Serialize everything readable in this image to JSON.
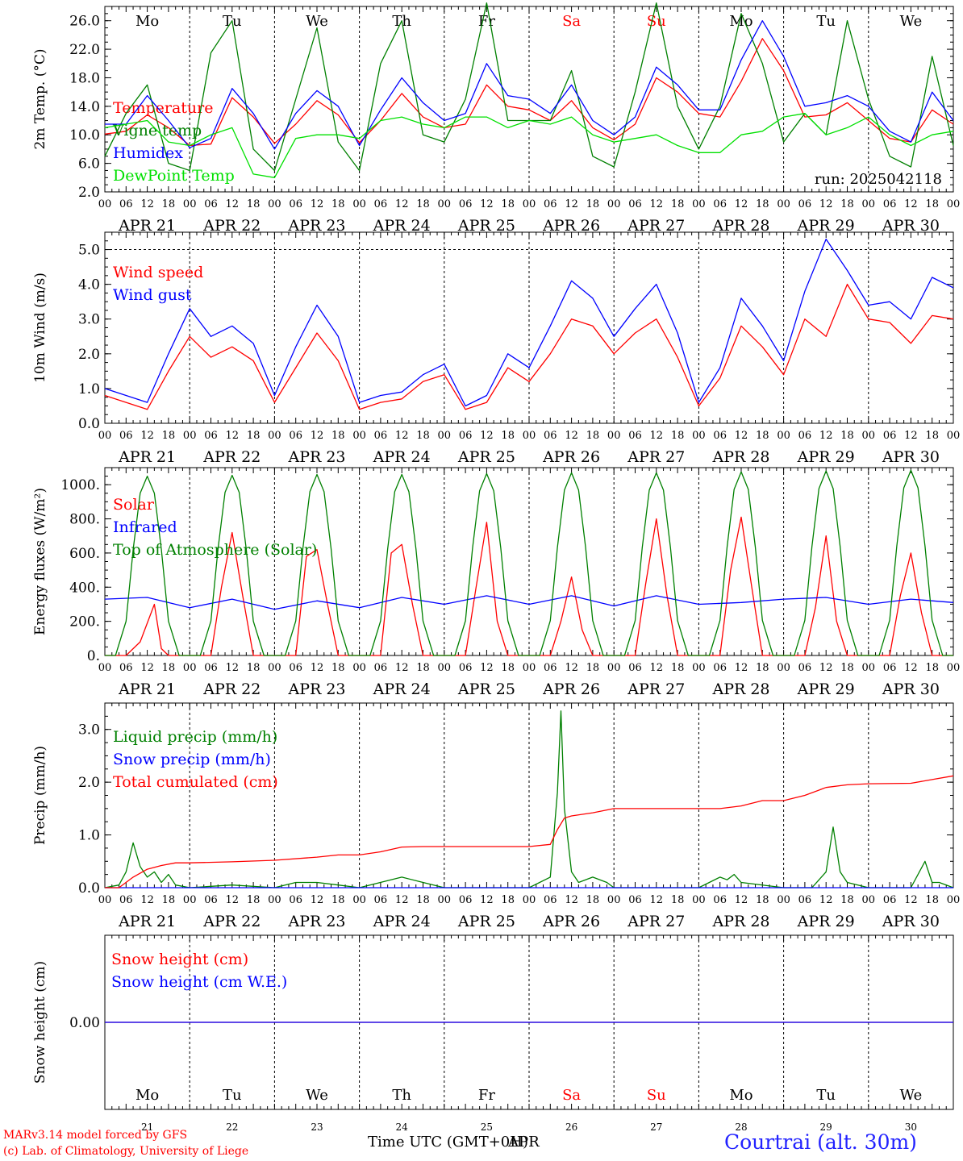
{
  "days": [
    "21",
    "22",
    "23",
    "24",
    "25",
    "26",
    "27",
    "28",
    "29",
    "30"
  ],
  "month": "APR",
  "weekdays": [
    "Mo",
    "Tu",
    "We",
    "Th",
    "Fr",
    "Sa",
    "Su",
    "Mo",
    "Tu",
    "We"
  ],
  "weekend_flags": [
    false,
    false,
    false,
    false,
    false,
    true,
    true,
    false,
    false,
    false
  ],
  "hour_ticks": [
    "00",
    "06",
    "12",
    "18"
  ],
  "colors": {
    "red": "#ff0000",
    "green": "#008000",
    "blue": "#0000ff",
    "lightgreen": "#00e000",
    "gray": "#888888",
    "axis": "#000000"
  },
  "footer": {
    "model": "MARv3.14 model forced by GFS",
    "credit": "(c) Lab. of Climatology, University of Liege",
    "time_label": "Time UTC (GMT+0H)",
    "time_label_overlay": "APR",
    "location": "Courtrai (alt. 30m)"
  },
  "chart_data": [
    {
      "type": "line",
      "ylabel": "2m Temp. (°C)",
      "ylim": [
        2,
        28
      ],
      "yticks": [
        "2.0",
        "6.0",
        "10.0",
        "14.0",
        "18.0",
        "22.0",
        "26.0"
      ],
      "annotation": "run: 2025042118",
      "x_unit": "hours since APR 21 00 UTC",
      "series": [
        {
          "name": "Temperature",
          "color": "red",
          "x": [
            0,
            6,
            12,
            18,
            24,
            30,
            36,
            42,
            48,
            54,
            60,
            66,
            72,
            78,
            84,
            90,
            96,
            102,
            108,
            114,
            120,
            126,
            132,
            138,
            144,
            150,
            156,
            162,
            168,
            174,
            180,
            186,
            192,
            198,
            204,
            210,
            216,
            222,
            228,
            234,
            240
          ],
          "values": [
            10.1,
            10.5,
            12.8,
            11.0,
            8.5,
            8.7,
            15.2,
            12.5,
            8.8,
            11.5,
            14.8,
            12.8,
            8.9,
            12.0,
            15.8,
            12.5,
            11.0,
            11.5,
            17.0,
            14.0,
            13.5,
            12.0,
            14.8,
            11.0,
            9.3,
            11.5,
            18.0,
            16.0,
            13.0,
            12.5,
            17.5,
            23.5,
            19.0,
            12.5,
            12.8,
            14.5,
            12.0,
            9.5,
            9.0,
            13.5,
            11.5
          ]
        },
        {
          "name": "Vigne temp",
          "color": "green",
          "x": [
            0,
            6,
            12,
            18,
            24,
            30,
            36,
            42,
            48,
            54,
            60,
            66,
            72,
            78,
            84,
            90,
            96,
            102,
            108,
            114,
            120,
            126,
            132,
            138,
            144,
            150,
            156,
            162,
            168,
            174,
            180,
            186,
            192,
            198,
            204,
            210,
            216,
            222,
            228,
            234,
            240
          ],
          "values": [
            7.0,
            13.0,
            17.0,
            6.0,
            5.0,
            21.5,
            26.0,
            8.0,
            5.0,
            15.0,
            25.0,
            9.0,
            5.0,
            20.0,
            26.0,
            10.0,
            9.0,
            15.0,
            28.5,
            12.0,
            12.0,
            12.0,
            19.0,
            7.0,
            5.5,
            16.0,
            28.5,
            14.0,
            8.0,
            14.0,
            27.0,
            20.0,
            9.0,
            13.0,
            10.0,
            26.0,
            15.0,
            7.0,
            5.5,
            21.0,
            8.5
          ]
        },
        {
          "name": "Humidex",
          "color": "blue",
          "x": [
            0,
            6,
            12,
            18,
            24,
            30,
            36,
            42,
            48,
            54,
            60,
            66,
            72,
            78,
            84,
            90,
            96,
            102,
            108,
            114,
            120,
            126,
            132,
            138,
            144,
            150,
            156,
            162,
            168,
            174,
            180,
            186,
            192,
            198,
            204,
            210,
            216,
            222,
            228,
            234,
            240
          ],
          "values": [
            11.5,
            11.5,
            15.5,
            12.0,
            8.2,
            9.5,
            16.5,
            13.0,
            8.0,
            13.0,
            16.2,
            14.0,
            8.5,
            13.5,
            18.0,
            14.5,
            12.0,
            13.0,
            20.0,
            15.5,
            15.0,
            13.0,
            17.0,
            12.0,
            10.0,
            12.5,
            19.5,
            17.0,
            13.5,
            13.5,
            20.5,
            26.0,
            21.0,
            14.0,
            14.5,
            15.5,
            14.0,
            10.5,
            9.0,
            16.0,
            12.0
          ]
        },
        {
          "name": "DewPoint Temp",
          "color": "lightgreen",
          "x": [
            0,
            6,
            12,
            18,
            24,
            30,
            36,
            42,
            48,
            54,
            60,
            66,
            72,
            78,
            84,
            90,
            96,
            102,
            108,
            114,
            120,
            126,
            132,
            138,
            144,
            150,
            156,
            162,
            168,
            174,
            180,
            186,
            192,
            198,
            204,
            210,
            216,
            222,
            228,
            234,
            240
          ],
          "values": [
            11.0,
            11.5,
            12.0,
            9.0,
            8.5,
            10.0,
            11.0,
            4.5,
            4.0,
            9.5,
            10.0,
            10.0,
            9.5,
            12.0,
            12.5,
            11.5,
            11.0,
            12.5,
            12.5,
            11.0,
            12.0,
            11.5,
            12.5,
            10.0,
            9.0,
            9.5,
            10.0,
            8.5,
            7.5,
            7.5,
            10.0,
            10.5,
            12.5,
            13.0,
            10.0,
            11.0,
            12.5,
            10.0,
            8.5,
            10.0,
            10.5
          ]
        }
      ]
    },
    {
      "type": "line",
      "ylabel": "10m Wind (m/s)",
      "ylim": [
        0,
        5.5
      ],
      "yticks": [
        "0.0",
        "1.0",
        "2.0",
        "3.0",
        "4.0",
        "5.0"
      ],
      "dashed_ref": 5.0,
      "x_unit": "hours since APR 21 00 UTC",
      "series": [
        {
          "name": "Wind speed",
          "color": "red",
          "x": [
            0,
            6,
            12,
            18,
            24,
            30,
            36,
            42,
            48,
            54,
            60,
            66,
            72,
            78,
            84,
            90,
            96,
            102,
            108,
            114,
            120,
            126,
            132,
            138,
            144,
            150,
            156,
            162,
            168,
            174,
            180,
            186,
            192,
            198,
            204,
            210,
            216,
            222,
            228,
            234,
            240
          ],
          "values": [
            0.8,
            0.6,
            0.4,
            1.5,
            2.5,
            1.9,
            2.2,
            1.8,
            0.6,
            1.6,
            2.6,
            1.8,
            0.4,
            0.6,
            0.7,
            1.2,
            1.4,
            0.4,
            0.6,
            1.6,
            1.2,
            2.0,
            3.0,
            2.8,
            2.0,
            2.6,
            3.0,
            1.9,
            0.5,
            1.3,
            2.8,
            2.2,
            1.4,
            3.0,
            2.5,
            4.0,
            3.0,
            2.9,
            2.3,
            3.1,
            3.0
          ]
        },
        {
          "name": "Wind gust",
          "color": "blue",
          "x": [
            0,
            6,
            12,
            18,
            24,
            30,
            36,
            42,
            48,
            54,
            60,
            66,
            72,
            78,
            84,
            90,
            96,
            102,
            108,
            114,
            120,
            126,
            132,
            138,
            144,
            150,
            156,
            162,
            168,
            174,
            180,
            186,
            192,
            198,
            204,
            210,
            216,
            222,
            228,
            234,
            240
          ],
          "values": [
            1.0,
            0.8,
            0.6,
            2.0,
            3.3,
            2.5,
            2.8,
            2.3,
            0.8,
            2.2,
            3.4,
            2.5,
            0.6,
            0.8,
            0.9,
            1.4,
            1.7,
            0.5,
            0.8,
            2.0,
            1.6,
            2.8,
            4.1,
            3.6,
            2.5,
            3.3,
            4.0,
            2.6,
            0.6,
            1.6,
            3.6,
            2.8,
            1.8,
            3.8,
            5.3,
            4.4,
            3.4,
            3.5,
            3.0,
            4.2,
            3.9
          ]
        }
      ]
    },
    {
      "type": "line",
      "ylabel": "Energy fluxes (W/m²)",
      "ylim": [
        0,
        1100
      ],
      "yticks": [
        "0.",
        "200.",
        "400.",
        "600.",
        "800.",
        "1000."
      ],
      "x_unit": "hours since APR 21 00 UTC",
      "series": [
        {
          "name": "Solar",
          "color": "red",
          "x": [
            0,
            6,
            10,
            14,
            16,
            18,
            24,
            30,
            33,
            36,
            39,
            42,
            48,
            54,
            57,
            60,
            63,
            66,
            72,
            78,
            81,
            84,
            87,
            90,
            96,
            102,
            105,
            108,
            111,
            114,
            120,
            126,
            129,
            132,
            135,
            138,
            144,
            150,
            153,
            156,
            159,
            162,
            168,
            174,
            177,
            180,
            183,
            186,
            192,
            198,
            201,
            204,
            207,
            210,
            216,
            222,
            225,
            228,
            231,
            234,
            240
          ],
          "values": [
            0,
            0,
            80,
            300,
            40,
            0,
            0,
            0,
            400,
            720,
            350,
            0,
            0,
            0,
            580,
            620,
            300,
            0,
            0,
            0,
            600,
            650,
            300,
            0,
            0,
            0,
            400,
            780,
            200,
            0,
            0,
            0,
            200,
            460,
            150,
            0,
            0,
            0,
            420,
            800,
            350,
            0,
            0,
            0,
            500,
            810,
            400,
            0,
            0,
            0,
            280,
            700,
            200,
            0,
            0,
            0,
            350,
            600,
            250,
            0,
            0
          ]
        },
        {
          "name": "Infrared",
          "color": "blue",
          "x": [
            0,
            12,
            24,
            36,
            48,
            60,
            72,
            84,
            96,
            108,
            120,
            132,
            144,
            156,
            168,
            180,
            192,
            204,
            216,
            228,
            240
          ],
          "values": [
            330,
            340,
            280,
            330,
            270,
            320,
            280,
            340,
            300,
            350,
            300,
            350,
            290,
            350,
            300,
            310,
            330,
            340,
            300,
            330,
            310
          ]
        },
        {
          "name": "Top of Atmosphere (Solar)",
          "color": "green",
          "x": [
            0,
            3,
            6,
            8,
            10,
            12,
            14,
            16,
            18,
            21,
            24
          ],
          "values": [
            0,
            0,
            200,
            620,
            950,
            1050,
            950,
            620,
            200,
            0,
            0
          ],
          "repeat_daily": true,
          "peaks": [
            1050,
            1055,
            1060,
            1060,
            1065,
            1070,
            1070,
            1075,
            1080,
            1085
          ]
        }
      ]
    },
    {
      "type": "line",
      "ylabel": "Precip (mm/h)",
      "ylim": [
        0,
        3.5
      ],
      "yticks": [
        "0.0",
        "1.0",
        "2.0",
        "3.0"
      ],
      "x_unit": "hours since APR 21 00 UTC",
      "series": [
        {
          "name": "Liquid precip (mm/h)",
          "color": "green",
          "x": [
            0,
            4,
            6,
            8,
            10,
            12,
            14,
            16,
            18,
            20,
            24,
            36,
            48,
            54,
            60,
            66,
            72,
            84,
            90,
            96,
            120,
            126,
            128,
            129,
            130,
            132,
            134,
            138,
            142,
            144,
            168,
            174,
            176,
            178,
            180,
            192,
            200,
            204,
            206,
            208,
            210,
            216,
            228,
            232,
            234,
            236,
            240
          ],
          "values": [
            0,
            0.05,
            0.3,
            0.85,
            0.4,
            0.2,
            0.3,
            0.1,
            0.25,
            0.05,
            0,
            0.05,
            0,
            0.1,
            0.1,
            0.05,
            0,
            0.2,
            0.1,
            0,
            0,
            0.2,
            1.8,
            3.35,
            1.5,
            0.3,
            0.1,
            0.2,
            0.1,
            0,
            0,
            0.2,
            0.15,
            0.25,
            0.1,
            0,
            0,
            0.3,
            1.15,
            0.3,
            0.1,
            0,
            0,
            0.5,
            0.1,
            0.1,
            0
          ]
        },
        {
          "name": "Snow precip (mm/h)",
          "color": "blue",
          "x": [
            0,
            240
          ],
          "values": [
            0,
            0
          ]
        },
        {
          "name": "Total cumulated (cm)",
          "color": "red",
          "x": [
            0,
            4,
            8,
            12,
            16,
            20,
            24,
            36,
            48,
            60,
            66,
            72,
            78,
            84,
            90,
            96,
            108,
            120,
            126,
            128,
            130,
            132,
            138,
            144,
            150,
            168,
            174,
            180,
            186,
            192,
            198,
            204,
            210,
            216,
            228,
            234,
            240
          ],
          "values": [
            0,
            0,
            0.2,
            0.35,
            0.42,
            0.47,
            0.47,
            0.49,
            0.52,
            0.58,
            0.62,
            0.62,
            0.68,
            0.77,
            0.78,
            0.78,
            0.78,
            0.78,
            0.82,
            1.1,
            1.32,
            1.36,
            1.42,
            1.5,
            1.5,
            1.5,
            1.5,
            1.55,
            1.65,
            1.65,
            1.75,
            1.9,
            1.95,
            1.97,
            1.98,
            2.05,
            2.12
          ]
        }
      ]
    },
    {
      "type": "line",
      "ylabel": "Snow height (cm)",
      "ylim": [
        -1,
        1
      ],
      "yticks": [
        "0.00"
      ],
      "series": [
        {
          "name": "Snow height (cm)",
          "color": "red",
          "x": [
            0,
            240
          ],
          "values": [
            0,
            0
          ]
        },
        {
          "name": "Snow height (cm W.E.)",
          "color": "blue",
          "x": [
            0,
            240
          ],
          "values": [
            0,
            0
          ]
        }
      ]
    }
  ]
}
